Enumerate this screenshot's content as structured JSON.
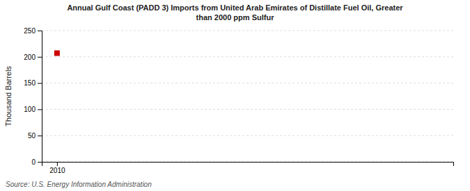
{
  "chart_data": {
    "type": "scatter",
    "title": "Annual Gulf Coast (PADD 3) Imports from United Arab Emirates of Distillate Fuel Oil, Greater\nthan 2000 ppm Sulfur",
    "y_label": "Thousand Barrels",
    "source": "Source: U.S. Energy Information Administration",
    "x": [
      2010
    ],
    "values": [
      207
    ],
    "color": "#cc0000",
    "marker": "square",
    "xlim": [
      2009.5,
      2023
    ],
    "xticks": [
      2010
    ],
    "ylim": [
      0,
      250
    ],
    "yticks": [
      0,
      50,
      100,
      150,
      200,
      250
    ],
    "grid": true
  }
}
